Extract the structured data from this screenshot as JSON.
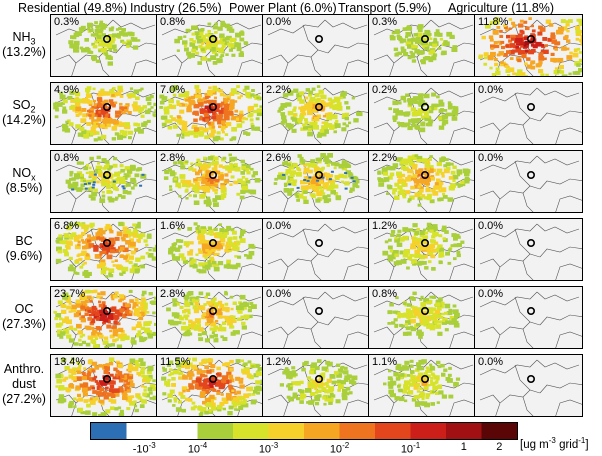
{
  "chart_data": {
    "type": "heatmap",
    "title": "",
    "columns": [
      {
        "id": "residential",
        "title": "Residential (49.8%)"
      },
      {
        "id": "industry",
        "title": "Industry (26.5%)"
      },
      {
        "id": "power",
        "title": "Power Plant (6.0%)"
      },
      {
        "id": "transport",
        "title": "Transport (5.9%)"
      },
      {
        "id": "agriculture",
        "title": "Agriculture (11.8%)"
      }
    ],
    "rows": [
      {
        "id": "nh3",
        "name": "NH",
        "sub": "3",
        "share": "(13.2%)",
        "values": [
          "0.3%",
          "0.8%",
          "0.0%",
          "0.3%",
          "11.8%"
        ],
        "intensity": [
          0.25,
          0.3,
          0.0,
          0.2,
          1.0
        ]
      },
      {
        "id": "so2",
        "name": "SO",
        "sub": "2",
        "share": "(14.2%)",
        "values": [
          "4.9%",
          "7.0%",
          "2.2%",
          "0.2%",
          "0.0%"
        ],
        "intensity": [
          0.8,
          0.9,
          0.5,
          0.2,
          0.0
        ]
      },
      {
        "id": "nox",
        "name": "NO",
        "sub": "x",
        "share": "(8.5%)",
        "values": [
          "0.8%",
          "2.8%",
          "2.6%",
          "2.2%",
          "0.0%"
        ],
        "intensity": [
          0.35,
          0.6,
          0.5,
          0.6,
          0.0
        ]
      },
      {
        "id": "bc",
        "name": "BC",
        "sub": "",
        "share": "(9.6%)",
        "values": [
          "6.8%",
          "1.6%",
          "0.0%",
          "1.2%",
          "0.0%"
        ],
        "intensity": [
          0.85,
          0.5,
          0.0,
          0.4,
          0.0
        ]
      },
      {
        "id": "oc",
        "name": "OC",
        "sub": "",
        "share": "(27.3%)",
        "values": [
          "23.7%",
          "2.8%",
          "0.0%",
          "0.8%",
          "0.0%"
        ],
        "intensity": [
          1.0,
          0.55,
          0.0,
          0.35,
          0.0
        ]
      },
      {
        "id": "dust",
        "name": "Anthro.",
        "sub": "",
        "name2": "dust",
        "share": "(27.2%)",
        "values": [
          "13.4%",
          "11.5%",
          "1.2%",
          "1.1%",
          "0.0%"
        ],
        "intensity": [
          0.95,
          0.9,
          0.35,
          0.35,
          0.0
        ]
      }
    ],
    "colorbar": {
      "colors": [
        "#2c6fb5",
        "#ffffff",
        "#ffffff",
        "#a9cf3b",
        "#d7e32a",
        "#f6d12b",
        "#f5a623",
        "#ee7420",
        "#e3461c",
        "#cd1f1a",
        "#a11012",
        "#5a0606"
      ],
      "ticks": [
        {
          "base": "-10",
          "exp": "-3"
        },
        {
          "base": "10",
          "exp": "-4"
        },
        {
          "base": "10",
          "exp": "-3"
        },
        {
          "base": "10",
          "exp": "-2"
        },
        {
          "base": "10",
          "exp": "-1"
        },
        {
          "base": "1",
          "exp": ""
        },
        {
          "base": "2",
          "exp": ""
        }
      ],
      "unit_pre": "[ug m",
      "unit_exp1": "-3",
      "unit_mid": " grid",
      "unit_exp2": "-1",
      "unit_post": "]"
    }
  }
}
